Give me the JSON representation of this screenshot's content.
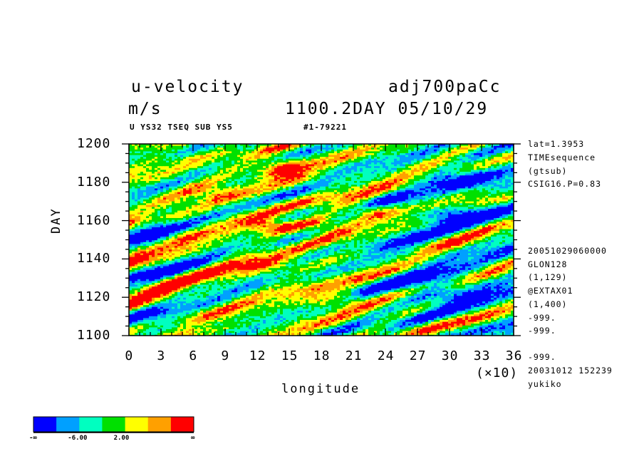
{
  "header": {
    "title_left": "u-velocity",
    "title_right": "adj700paCc",
    "unit": "m/s",
    "time_stamp": "1100.2DAY 05/10/29",
    "sub_left": "U YS32 TSEQ SUB YS5",
    "sub_right": "#1-79221"
  },
  "side_info": {
    "top": [
      "lat=1.3953",
      "TIMEsequence",
      "(gtsub)",
      "CSIG16.P=0.83"
    ],
    "bottom": [
      "20051029060000",
      "GLON128",
      "(1,129)",
      "@EXTAX01",
      "(1,400)",
      "-999.",
      "-999.",
      "-999.",
      "20031012 152239",
      "yukiko"
    ]
  },
  "chart_data": {
    "type": "heatmap",
    "title": "u-velocity",
    "xlabel": "longitude",
    "xlabel_multiplier": "(×10)",
    "ylabel": "DAY",
    "x_ticks": [
      "0",
      "3",
      "6",
      "9",
      "12",
      "15",
      "18",
      "21",
      "24",
      "27",
      "30",
      "33",
      "36"
    ],
    "y_ticks": [
      "1100",
      "1120",
      "1140",
      "1160",
      "1180",
      "1200"
    ],
    "xlim": [
      0,
      36
    ],
    "ylim": [
      1100,
      1200
    ],
    "colorbar": {
      "colors": [
        "#0000ff",
        "#00a0ff",
        "#00ffc0",
        "#00e000",
        "#ffff00",
        "#ffa000",
        "#ff0000"
      ],
      "labels": [
        "-∞",
        "-6.00",
        "2.00",
        "∞"
      ]
    }
  }
}
